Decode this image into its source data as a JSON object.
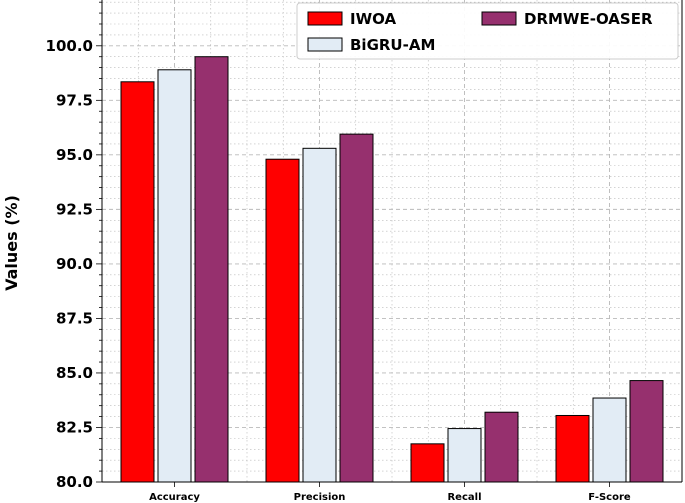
{
  "chart_data": {
    "type": "bar",
    "categories": [
      "Accuracy",
      "Precision",
      "Recall",
      "F-Score"
    ],
    "series": [
      {
        "name": "IWOA",
        "color": "#ff0000",
        "values": [
          98.35,
          94.8,
          81.75,
          83.05
        ]
      },
      {
        "name": "BiGRU-AM",
        "color": "#e2ecf5",
        "values": [
          98.9,
          95.3,
          82.45,
          83.85
        ]
      },
      {
        "name": "DRMWE-OASER",
        "color": "#96306e",
        "values": [
          99.5,
          95.95,
          83.2,
          84.65
        ]
      }
    ],
    "ylabel": "Values (%)",
    "ylim": [
      80,
      102.1
    ],
    "yticks": [
      "80.0",
      "82.5",
      "85.0",
      "87.5",
      "90.0",
      "92.5",
      "95.0",
      "97.5",
      "100.0"
    ],
    "grid": true,
    "legend": "top-right"
  }
}
